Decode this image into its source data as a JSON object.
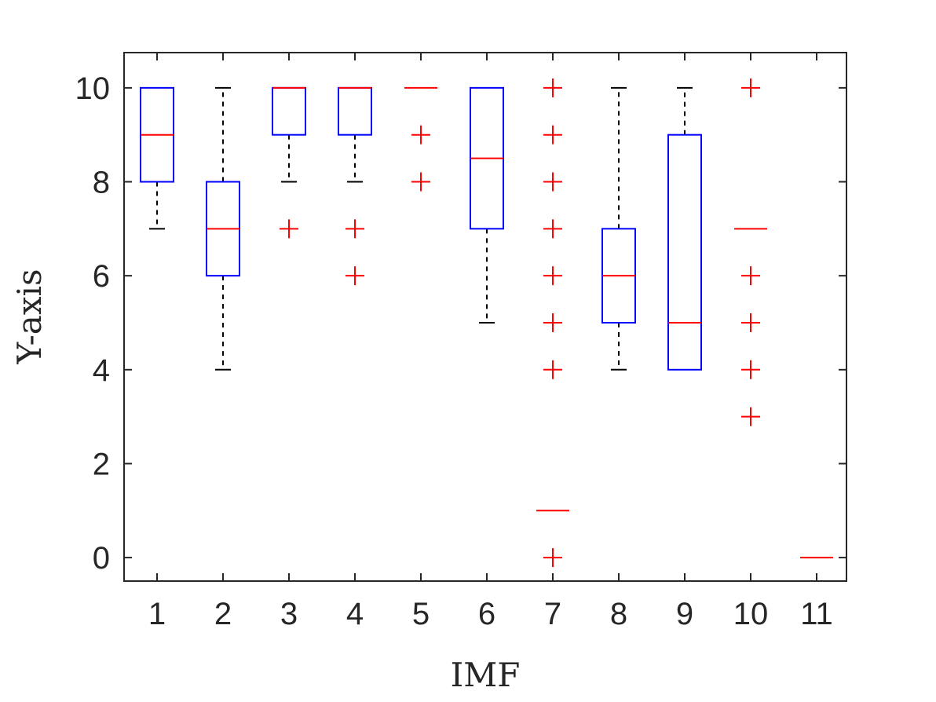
{
  "chart_data": {
    "type": "boxplot",
    "xlabel": "IMF",
    "ylabel": "Y-axis",
    "categories": [
      "1",
      "2",
      "3",
      "4",
      "5",
      "6",
      "7",
      "8",
      "9",
      "10",
      "11"
    ],
    "ylim": [
      -0.5,
      10.75
    ],
    "yticks": [
      "0",
      "2",
      "4",
      "6",
      "8",
      "10"
    ],
    "grid": false,
    "colors": {
      "box": "#0000ff",
      "median": "#ff0000",
      "whisker": "#000000",
      "outlier": "#ff0000",
      "axis": "#262626"
    },
    "boxes": [
      {
        "category": "1",
        "whisker_low": 7,
        "q1": 8,
        "median": 9,
        "q3": 10,
        "whisker_high": 10,
        "outliers": []
      },
      {
        "category": "2",
        "whisker_low": 4,
        "q1": 6,
        "median": 7,
        "q3": 8,
        "whisker_high": 10,
        "outliers": []
      },
      {
        "category": "3",
        "whisker_low": 8,
        "q1": 9,
        "median": 10,
        "q3": 10,
        "whisker_high": 10,
        "outliers": [
          7
        ]
      },
      {
        "category": "4",
        "whisker_low": 8,
        "q1": 9,
        "median": 10,
        "q3": 10,
        "whisker_high": 10,
        "outliers": [
          7,
          6
        ]
      },
      {
        "category": "5",
        "whisker_low": 10,
        "q1": 10,
        "median": 10,
        "q3": 10,
        "whisker_high": 10,
        "outliers": [
          9,
          8
        ]
      },
      {
        "category": "6",
        "whisker_low": 5,
        "q1": 7,
        "median": 8.5,
        "q3": 10,
        "whisker_high": 10,
        "outliers": []
      },
      {
        "category": "7",
        "whisker_low": 1,
        "q1": 1,
        "median": 1,
        "q3": 1,
        "whisker_high": 1,
        "outliers": [
          10,
          9,
          8,
          7,
          6,
          5,
          4,
          0
        ]
      },
      {
        "category": "8",
        "whisker_low": 4,
        "q1": 5,
        "median": 6,
        "q3": 7,
        "whisker_high": 10,
        "outliers": []
      },
      {
        "category": "9",
        "whisker_low": 4,
        "q1": 4,
        "median": 5,
        "q3": 9,
        "whisker_high": 10,
        "outliers": []
      },
      {
        "category": "10",
        "whisker_low": 7,
        "q1": 7,
        "median": 7,
        "q3": 7,
        "whisker_high": 7,
        "outliers": [
          10,
          6,
          5,
          4,
          3
        ]
      },
      {
        "category": "11",
        "whisker_low": 0,
        "q1": 0,
        "median": 0,
        "q3": 0,
        "whisker_high": 0,
        "outliers": []
      }
    ]
  }
}
